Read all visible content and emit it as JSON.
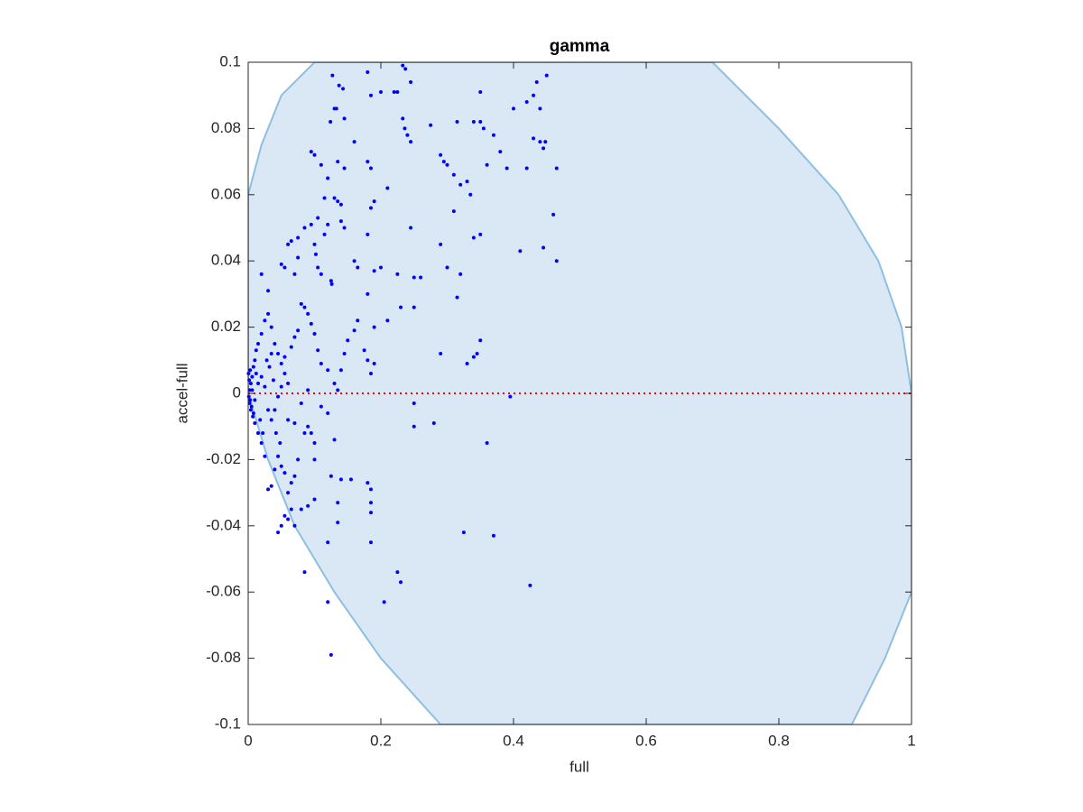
{
  "chart_data": {
    "type": "scatter",
    "title": "gamma",
    "x_label": "full",
    "y_label": "accel-full",
    "xlim": [
      0,
      1
    ],
    "ylim": [
      -0.1,
      0.1
    ],
    "xticks": [
      0,
      0.2,
      0.4,
      0.6,
      0.8,
      1
    ],
    "yticks": [
      -0.1,
      -0.08,
      -0.06,
      -0.04,
      -0.02,
      0,
      0.02,
      0.04,
      0.06,
      0.08,
      0.1
    ],
    "region": {
      "color": "#dae8f5",
      "edge_color": "#8dbfe2",
      "x": [
        0,
        0.02,
        0.05,
        0.1,
        0.7,
        0.8,
        0.89,
        0.95,
        0.985,
        1,
        1,
        0.96,
        0.91,
        0.29,
        0.2,
        0.13,
        0.07,
        0.03,
        0
      ],
      "values": [
        0.06,
        0.075,
        0.09,
        0.1,
        0.1,
        0.08,
        0.06,
        0.04,
        0.02,
        0,
        -0.06,
        -0.08,
        -0.1,
        -0.1,
        -0.08,
        -0.06,
        -0.04,
        -0.02,
        0
      ]
    },
    "reference_line": {
      "color": "#ff0000",
      "x": [
        0,
        1
      ],
      "values": [
        0,
        0
      ]
    },
    "scatter": {
      "color": "#0000ff",
      "x": [
        0.127,
        0.137,
        0.143,
        0.18,
        0.185,
        0.2,
        0.22,
        0.225,
        0.233,
        0.237,
        0.245,
        0.124,
        0.13,
        0.133,
        0.145,
        0.233,
        0.236,
        0.24,
        0.245,
        0.275,
        0.315,
        0.34,
        0.35,
        0.35,
        0.355,
        0.37,
        0.38,
        0.39,
        0.4,
        0.42,
        0.43,
        0.435,
        0.44,
        0.45,
        0.43,
        0.44,
        0.445,
        0.448,
        0.465,
        0.42,
        0.29,
        0.295,
        0.3,
        0.31,
        0.32,
        0.33,
        0.335,
        0.36,
        0.095,
        0.1,
        0.11,
        0.12,
        0.135,
        0.145,
        0.16,
        0.18,
        0.185,
        0.21,
        0.185,
        0.19,
        0.13,
        0.135,
        0.14,
        0.115,
        0.105,
        0.095,
        0.085,
        0.075,
        0.065,
        0.06,
        0.05,
        0.055,
        0.07,
        0.075,
        0.1,
        0.102,
        0.105,
        0.11,
        0.115,
        0.12,
        0.14,
        0.145,
        0.16,
        0.165,
        0.18,
        0.19,
        0.2,
        0.18,
        0.125,
        0.126,
        0.245,
        0.29,
        0.31,
        0.32,
        0.3,
        0.26,
        0.25,
        0.25,
        0.23,
        0.21,
        0.225,
        0.315,
        0.34,
        0.35,
        0.41,
        0.445,
        0.46,
        0.465,
        0.29,
        0.33,
        0.34,
        0.345,
        0.35,
        0.395,
        0.36,
        0.25,
        0.25,
        0.28,
        0.325,
        0.37,
        0.425,
        0.225,
        0.23,
        0.205,
        0.185,
        0.12,
        0.12,
        0.125,
        0.085,
        0.135,
        0.14,
        0.155,
        0.18,
        0.185,
        0.185,
        0.185,
        0.135,
        0.125,
        0.1,
        0.09,
        0.08,
        0.065,
        0.055,
        0.045,
        0.05,
        0.07,
        0.06,
        0.1,
        0.1,
        0.095,
        0.09,
        0.085,
        0.075,
        0.07,
        0.065,
        0.06,
        0.055,
        0.05,
        0.045,
        0.04,
        0.035,
        0.03,
        0.025,
        0.02,
        0.015,
        0.01,
        0.008,
        0.005,
        0.003,
        0.002,
        0.004,
        0.006,
        0.008,
        0.01,
        0.012,
        0.015,
        0.02,
        0.025,
        0.03,
        0.035,
        0.04,
        0.045,
        0.05,
        0.055,
        0.06,
        0.065,
        0.07,
        0.075,
        0.08,
        0.085,
        0.09,
        0.095,
        0.1,
        0.105,
        0.11,
        0.12,
        0.13,
        0.135,
        0.14,
        0.145,
        0.15,
        0.16,
        0.165,
        0.175,
        0.18,
        0.185,
        0.19,
        0.19,
        0.02,
        0.025,
        0.03,
        0.035,
        0.04,
        0.045,
        0.05,
        0.06,
        0.07,
        0.08,
        0.09,
        0.11,
        0.12,
        0.13,
        0.015,
        0.01,
        0.012,
        0.018,
        0.022,
        0.028,
        0.032,
        0.038,
        0.042,
        0.048,
        0.055,
        0.03,
        0.02,
        0.035,
        0.0005,
        0.001,
        0.0015,
        0.002,
        0.003,
        0.004,
        0.006,
        0.007
      ],
      "values": [
        0.096,
        0.093,
        0.092,
        0.097,
        0.09,
        0.091,
        0.091,
        0.091,
        0.099,
        0.098,
        0.094,
        0.082,
        0.086,
        0.086,
        0.083,
        0.083,
        0.08,
        0.078,
        0.076,
        0.081,
        0.082,
        0.082,
        0.091,
        0.082,
        0.08,
        0.078,
        0.073,
        0.068,
        0.086,
        0.088,
        0.09,
        0.094,
        0.086,
        0.096,
        0.077,
        0.076,
        0.074,
        0.076,
        0.068,
        0.068,
        0.072,
        0.07,
        0.069,
        0.066,
        0.063,
        0.064,
        0.06,
        0.069,
        0.073,
        0.072,
        0.069,
        0.065,
        0.07,
        0.068,
        0.076,
        0.07,
        0.068,
        0.062,
        0.056,
        0.058,
        0.059,
        0.058,
        0.057,
        0.059,
        0.053,
        0.051,
        0.05,
        0.047,
        0.046,
        0.045,
        0.039,
        0.038,
        0.036,
        0.041,
        0.045,
        0.042,
        0.038,
        0.036,
        0.048,
        0.051,
        0.052,
        0.05,
        0.04,
        0.038,
        0.048,
        0.037,
        0.038,
        0.03,
        0.034,
        0.033,
        0.05,
        0.045,
        0.055,
        0.036,
        0.038,
        0.035,
        0.035,
        0.026,
        0.026,
        0.022,
        0.036,
        0.029,
        0.047,
        0.048,
        0.043,
        0.044,
        0.054,
        0.04,
        0.012,
        0.009,
        0.011,
        0.012,
        0.016,
        -0.001,
        -0.015,
        -0.003,
        -0.01,
        -0.009,
        -0.042,
        -0.043,
        -0.058,
        -0.054,
        -0.057,
        -0.063,
        -0.045,
        -0.045,
        -0.063,
        -0.079,
        -0.054,
        -0.039,
        -0.026,
        -0.026,
        -0.027,
        -0.029,
        -0.033,
        -0.036,
        -0.033,
        -0.025,
        -0.032,
        -0.034,
        -0.035,
        -0.035,
        -0.037,
        -0.042,
        -0.04,
        -0.04,
        -0.038,
        -0.02,
        -0.015,
        -0.012,
        -0.01,
        -0.012,
        -0.02,
        -0.025,
        -0.027,
        -0.03,
        -0.024,
        -0.022,
        -0.019,
        -0.023,
        -0.028,
        -0.029,
        -0.019,
        -0.015,
        -0.012,
        -0.009,
        -0.006,
        -0.004,
        -0.002,
        0.001,
        0.003,
        0.005,
        0.008,
        0.01,
        0.013,
        0.015,
        0.018,
        0.022,
        0.024,
        0.02,
        0.015,
        0.012,
        0.009,
        0.006,
        0.003,
        0.014,
        0.017,
        0.019,
        0.027,
        0.026,
        0.024,
        0.021,
        0.018,
        0.013,
        0.009,
        0.007,
        0.003,
        0.001,
        0.007,
        0.012,
        0.016,
        0.019,
        0.022,
        0.013,
        0.01,
        0.006,
        0.009,
        0.02,
        0.005,
        0.002,
        -0.005,
        -0.008,
        -0.005,
        -0.001,
        0.002,
        -0.008,
        -0.009,
        -0.003,
        0.001,
        -0.004,
        -0.006,
        -0.014,
        0.003,
        -0.002,
        0.006,
        -0.008,
        -0.012,
        0.01,
        0.008,
        0.004,
        -0.012,
        -0.015,
        0.011,
        0.031,
        0.036,
        0.012,
        0.006,
        -0.001,
        0.004,
        -0.003,
        0.007,
        -0.005,
        0.001,
        -0.007
      ]
    }
  }
}
